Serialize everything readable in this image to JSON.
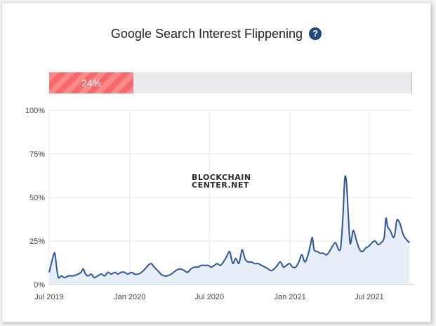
{
  "title": "Google Search Interest Flippening",
  "help_icon": "question-circle-icon",
  "progress": {
    "value": 0.24,
    "label": "24%",
    "color": "#f7686a"
  },
  "watermark": {
    "line1": "BLOCKCHAIN",
    "line2": "CENTER.NET"
  },
  "chart_data": {
    "type": "area",
    "title": "",
    "xlabel": "",
    "ylabel": "",
    "x_ticks": [
      {
        "label": "Jul 2019",
        "date": "2019-07-01"
      },
      {
        "label": "Jan 2020",
        "date": "2020-01-01"
      },
      {
        "label": "Jul 2020",
        "date": "2020-07-01"
      },
      {
        "label": "Jan 2021",
        "date": "2021-01-01"
      },
      {
        "label": "Jul 2021",
        "date": "2021-07-01"
      }
    ],
    "y_ticks": [
      0,
      25,
      50,
      75,
      100
    ],
    "y_tick_labels": [
      "0%",
      "25%",
      "50%",
      "75%",
      "100%"
    ],
    "ylim": [
      0,
      100
    ],
    "xlim": [
      "2019-07-01",
      "2021-10-10"
    ],
    "grid": true,
    "line_color": "#2f5597",
    "fill_color": "#e7eef8",
    "series": [
      {
        "points": [
          [
            "2019-07-01",
            7
          ],
          [
            "2019-07-06",
            12
          ],
          [
            "2019-07-10",
            16
          ],
          [
            "2019-07-14",
            18
          ],
          [
            "2019-07-18",
            10
          ],
          [
            "2019-07-22",
            4
          ],
          [
            "2019-07-29",
            5
          ],
          [
            "2019-08-05",
            4
          ],
          [
            "2019-08-15",
            5
          ],
          [
            "2019-08-25",
            5
          ],
          [
            "2019-09-05",
            6
          ],
          [
            "2019-09-12",
            7
          ],
          [
            "2019-09-17",
            9
          ],
          [
            "2019-09-22",
            6
          ],
          [
            "2019-09-28",
            5
          ],
          [
            "2019-10-05",
            6
          ],
          [
            "2019-10-12",
            4
          ],
          [
            "2019-10-20",
            5
          ],
          [
            "2019-10-28",
            6
          ],
          [
            "2019-11-05",
            5
          ],
          [
            "2019-11-12",
            7
          ],
          [
            "2019-11-20",
            6
          ],
          [
            "2019-11-28",
            7
          ],
          [
            "2019-12-05",
            6
          ],
          [
            "2019-12-12",
            7
          ],
          [
            "2019-12-20",
            7
          ],
          [
            "2019-12-28",
            6
          ],
          [
            "2020-01-05",
            7
          ],
          [
            "2020-01-12",
            6
          ],
          [
            "2020-01-20",
            6
          ],
          [
            "2020-01-28",
            7
          ],
          [
            "2020-02-05",
            9
          ],
          [
            "2020-02-12",
            11
          ],
          [
            "2020-02-19",
            12
          ],
          [
            "2020-02-26",
            10
          ],
          [
            "2020-03-05",
            8
          ],
          [
            "2020-03-12",
            6
          ],
          [
            "2020-03-19",
            5
          ],
          [
            "2020-03-26",
            5
          ],
          [
            "2020-04-05",
            6
          ],
          [
            "2020-04-15",
            8
          ],
          [
            "2020-04-25",
            9
          ],
          [
            "2020-05-05",
            8
          ],
          [
            "2020-05-12",
            7
          ],
          [
            "2020-05-20",
            9
          ],
          [
            "2020-05-28",
            10
          ],
          [
            "2020-06-05",
            10
          ],
          [
            "2020-06-12",
            11
          ],
          [
            "2020-06-20",
            11
          ],
          [
            "2020-06-28",
            11
          ],
          [
            "2020-07-05",
            10
          ],
          [
            "2020-07-12",
            11
          ],
          [
            "2020-07-19",
            12
          ],
          [
            "2020-07-26",
            11
          ],
          [
            "2020-08-02",
            13
          ],
          [
            "2020-08-09",
            16
          ],
          [
            "2020-08-16",
            19
          ],
          [
            "2020-08-20",
            15
          ],
          [
            "2020-08-24",
            12
          ],
          [
            "2020-08-30",
            15
          ],
          [
            "2020-09-06",
            12
          ],
          [
            "2020-09-10",
            16
          ],
          [
            "2020-09-14",
            20
          ],
          [
            "2020-09-20",
            15
          ],
          [
            "2020-09-27",
            13
          ],
          [
            "2020-10-05",
            13
          ],
          [
            "2020-10-12",
            12
          ],
          [
            "2020-10-20",
            12
          ],
          [
            "2020-10-28",
            11
          ],
          [
            "2020-11-05",
            10
          ],
          [
            "2020-11-12",
            9
          ],
          [
            "2020-11-19",
            8
          ],
          [
            "2020-11-26",
            9
          ],
          [
            "2020-12-03",
            11
          ],
          [
            "2020-12-10",
            13
          ],
          [
            "2020-12-17",
            10
          ],
          [
            "2020-12-24",
            11
          ],
          [
            "2020-12-31",
            12
          ],
          [
            "2021-01-07",
            10
          ],
          [
            "2021-01-14",
            10
          ],
          [
            "2021-01-21",
            13
          ],
          [
            "2021-01-28",
            17
          ],
          [
            "2021-02-04",
            13
          ],
          [
            "2021-02-11",
            17
          ],
          [
            "2021-02-16",
            22
          ],
          [
            "2021-02-21",
            27
          ],
          [
            "2021-02-25",
            20
          ],
          [
            "2021-03-04",
            19
          ],
          [
            "2021-03-11",
            18
          ],
          [
            "2021-03-18",
            18
          ],
          [
            "2021-03-25",
            17
          ],
          [
            "2021-04-01",
            19
          ],
          [
            "2021-04-08",
            22
          ],
          [
            "2021-04-15",
            24
          ],
          [
            "2021-04-22",
            20
          ],
          [
            "2021-04-27",
            22
          ],
          [
            "2021-05-02",
            40
          ],
          [
            "2021-05-06",
            61
          ],
          [
            "2021-05-10",
            58
          ],
          [
            "2021-05-14",
            40
          ],
          [
            "2021-05-18",
            24
          ],
          [
            "2021-05-22",
            27
          ],
          [
            "2021-05-26",
            31
          ],
          [
            "2021-06-02",
            25
          ],
          [
            "2021-06-09",
            20
          ],
          [
            "2021-06-16",
            19
          ],
          [
            "2021-06-23",
            21
          ],
          [
            "2021-06-30",
            22
          ],
          [
            "2021-07-07",
            24
          ],
          [
            "2021-07-14",
            25
          ],
          [
            "2021-07-21",
            23
          ],
          [
            "2021-07-28",
            24
          ],
          [
            "2021-08-04",
            27
          ],
          [
            "2021-08-08",
            38
          ],
          [
            "2021-08-12",
            33
          ],
          [
            "2021-08-18",
            31
          ],
          [
            "2021-08-25",
            27
          ],
          [
            "2021-08-29",
            30
          ],
          [
            "2021-09-02",
            37
          ],
          [
            "2021-09-09",
            35
          ],
          [
            "2021-09-16",
            29
          ],
          [
            "2021-09-23",
            26
          ],
          [
            "2021-10-01",
            24
          ]
        ]
      }
    ]
  }
}
